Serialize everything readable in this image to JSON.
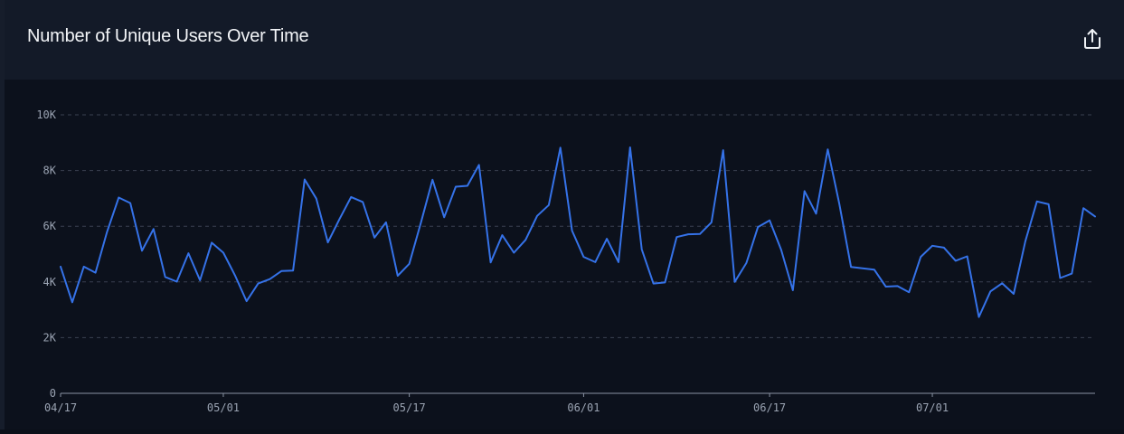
{
  "header": {
    "title": "Number of Unique Users Over Time",
    "export_icon": "export-share-icon"
  },
  "colors": {
    "line": "#3572e8",
    "grid": "#3a4150",
    "axis_text": "#9aa3b2",
    "axis_line": "#8a93a3"
  },
  "chart_data": {
    "type": "line",
    "title": "Number of Unique Users Over Time",
    "xlabel": "",
    "ylabel": "",
    "ylim": [
      0,
      10000
    ],
    "y_ticks": [
      0,
      2000,
      4000,
      6000,
      8000,
      10000
    ],
    "y_tick_labels": [
      "0",
      "2K",
      "4K",
      "6K",
      "8K",
      "10K"
    ],
    "x_tick_labels": [
      "04/17",
      "05/01",
      "05/17",
      "06/01",
      "06/17",
      "07/01"
    ],
    "x_tick_dates": [
      "04/17",
      "05/01",
      "05/17",
      "06/01",
      "06/17",
      "07/01"
    ],
    "grid": true,
    "series": [
      {
        "dates": [
          "04/17",
          "04/18",
          "04/19",
          "04/20",
          "04/21",
          "04/22",
          "04/23",
          "04/24",
          "04/25",
          "04/26",
          "04/27",
          "04/28",
          "04/29",
          "04/30",
          "05/01",
          "05/02",
          "05/03",
          "05/04",
          "05/05",
          "05/06",
          "05/07",
          "05/08",
          "05/09",
          "05/10",
          "05/11",
          "05/12",
          "05/13",
          "05/14",
          "05/15",
          "05/16",
          "05/17",
          "05/18",
          "05/19",
          "05/20",
          "05/21",
          "05/22",
          "05/23",
          "05/24",
          "05/25",
          "05/26",
          "05/27",
          "05/28",
          "05/29",
          "05/30",
          "05/31",
          "06/01",
          "06/02",
          "06/03",
          "06/04",
          "06/05",
          "06/06",
          "06/07",
          "06/08",
          "06/09",
          "06/10",
          "06/11",
          "06/12",
          "06/13",
          "06/14",
          "06/15",
          "06/16",
          "06/17",
          "06/18",
          "06/19",
          "06/20",
          "06/21",
          "06/22",
          "06/23",
          "06/24",
          "06/25",
          "06/26",
          "06/27",
          "06/28",
          "06/29",
          "06/30",
          "07/01",
          "07/02",
          "07/03",
          "07/04",
          "07/05",
          "07/06",
          "07/07",
          "07/08",
          "07/09",
          "07/10",
          "07/11",
          "07/12",
          "07/13",
          "07/14",
          "07/15"
        ],
        "values": [
          4550,
          3270,
          4550,
          4330,
          5800,
          7030,
          6830,
          5120,
          5900,
          4180,
          4010,
          5030,
          4060,
          5410,
          5050,
          4240,
          3310,
          3940,
          4100,
          4390,
          4410,
          7680,
          6990,
          5420,
          6260,
          7050,
          6870,
          5590,
          6140,
          4220,
          4650,
          6130,
          7670,
          6320,
          7420,
          7450,
          8200,
          4700,
          5680,
          5050,
          5510,
          6370,
          6760,
          8820,
          5840,
          4900,
          4710,
          5550,
          4710,
          8830,
          5170,
          3940,
          3980,
          5610,
          5710,
          5720,
          6140,
          8730,
          4000,
          4680,
          5970,
          6210,
          5150,
          3700,
          7260,
          6450,
          8760,
          6800,
          4540,
          4490,
          4440,
          3830,
          3850,
          3630,
          4900,
          5300,
          5230,
          4760,
          4920,
          2740,
          3660,
          3950,
          3570,
          5460,
          6890,
          6790,
          4140,
          4300,
          6650,
          6350
        ]
      }
    ]
  }
}
